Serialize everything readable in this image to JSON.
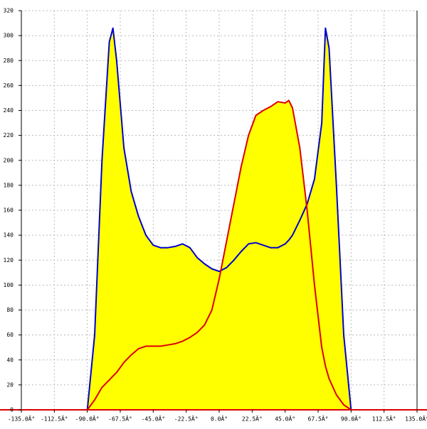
{
  "chart_data": {
    "type": "area",
    "x": [
      -90,
      -85,
      -80,
      -75,
      -72.5,
      -70,
      -65,
      -60,
      -55,
      -50,
      -45,
      -40,
      -35,
      -30,
      -25,
      -20,
      -15,
      -10,
      -5,
      0,
      5,
      10,
      15,
      20,
      25,
      30,
      35,
      40,
      45,
      47.5,
      50,
      55,
      60,
      65,
      70,
      72.5,
      75,
      80,
      85,
      90
    ],
    "series": [
      {
        "color": "#0000cc",
        "fill": "#ffff00",
        "values": [
          0,
          60,
          200,
          295,
          306,
          280,
          210,
          175,
          155,
          140,
          132,
          130,
          130,
          131,
          133,
          130,
          122,
          117,
          113,
          111,
          114,
          120,
          127,
          133,
          134,
          132,
          130,
          130,
          133,
          136,
          140,
          152,
          165,
          185,
          230,
          306,
          290,
          180,
          60,
          0
        ]
      },
      {
        "color": "#dd0000",
        "fill": "#ffff00",
        "values": [
          0,
          8,
          18,
          24,
          27,
          30,
          38,
          44,
          49,
          51,
          51,
          51,
          52,
          53,
          55,
          58,
          62,
          68,
          80,
          105,
          135,
          165,
          195,
          220,
          236,
          240,
          243,
          247,
          246,
          248,
          242,
          210,
          160,
          100,
          50,
          35,
          25,
          12,
          4,
          0
        ]
      }
    ],
    "xlim": [
      -135,
      135
    ],
    "ylim": [
      0,
      320
    ],
    "xticks": [
      {
        "value": -135,
        "label": "-135.0Â°"
      },
      {
        "value": -112.5,
        "label": "-112.5Â°"
      },
      {
        "value": -90,
        "label": "-90.0Â°"
      },
      {
        "value": -67.5,
        "label": "-67.5Â°"
      },
      {
        "value": -45,
        "label": "-45.0Â°"
      },
      {
        "value": -22.5,
        "label": "-22.5Â°"
      },
      {
        "value": 0,
        "label": "0.0Â°"
      },
      {
        "value": 22.5,
        "label": "22.5Â°"
      },
      {
        "value": 45,
        "label": "45.0Â°"
      },
      {
        "value": 67.5,
        "label": "67.5Â°"
      },
      {
        "value": 90,
        "label": "90.0Â°"
      },
      {
        "value": 112.5,
        "label": "112.5Â°"
      },
      {
        "value": 135,
        "label": "135.0Â°"
      }
    ],
    "yticks": [
      0,
      20,
      40,
      60,
      80,
      100,
      120,
      140,
      160,
      180,
      200,
      220,
      240,
      260,
      280,
      300,
      320
    ],
    "grid": true
  }
}
